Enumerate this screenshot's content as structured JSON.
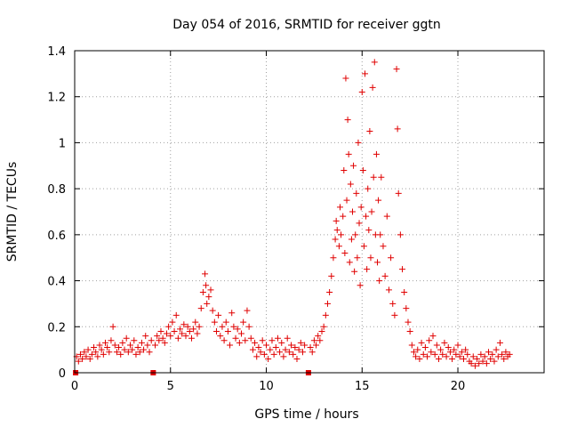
{
  "chart_data": {
    "type": "scatter",
    "title": "Day 054 of 2016, SRMTID for receiver ggtn",
    "xlabel": "GPS time / hours",
    "ylabel": "SRMTID / TECUs",
    "xlim": [
      0,
      24.5
    ],
    "ylim": [
      0,
      1.4
    ],
    "xticks": [
      0,
      5,
      10,
      15,
      20
    ],
    "xtick_labels": [
      "0",
      "5",
      "10",
      "15",
      "20"
    ],
    "yticks": [
      0,
      0.2,
      0.4,
      0.6,
      0.8,
      1.0,
      1.2,
      1.4
    ],
    "ytick_labels": [
      "0",
      "0.2",
      "0.4",
      "0.6",
      "0.8",
      "1",
      "1.2",
      "1.4"
    ],
    "grid": true,
    "marker": "+",
    "color": "#e00000",
    "gap_markers_x": [
      0.05,
      4.1,
      12.2
    ],
    "series": [
      {
        "name": "SRMTID",
        "points": [
          [
            0.1,
            0.07
          ],
          [
            0.2,
            0.05
          ],
          [
            0.3,
            0.08
          ],
          [
            0.4,
            0.06
          ],
          [
            0.5,
            0.09
          ],
          [
            0.6,
            0.07
          ],
          [
            0.7,
            0.1
          ],
          [
            0.8,
            0.06
          ],
          [
            0.9,
            0.08
          ],
          [
            1.0,
            0.11
          ],
          [
            1.1,
            0.09
          ],
          [
            1.2,
            0.07
          ],
          [
            1.3,
            0.12
          ],
          [
            1.4,
            0.1
          ],
          [
            1.5,
            0.08
          ],
          [
            1.6,
            0.13
          ],
          [
            1.7,
            0.11
          ],
          [
            1.8,
            0.09
          ],
          [
            1.9,
            0.14
          ],
          [
            2.0,
            0.2
          ],
          [
            2.1,
            0.12
          ],
          [
            2.2,
            0.09
          ],
          [
            2.3,
            0.11
          ],
          [
            2.4,
            0.08
          ],
          [
            2.5,
            0.13
          ],
          [
            2.6,
            0.1
          ],
          [
            2.7,
            0.15
          ],
          [
            2.8,
            0.09
          ],
          [
            2.9,
            0.12
          ],
          [
            3.0,
            0.1
          ],
          [
            3.1,
            0.14
          ],
          [
            3.2,
            0.08
          ],
          [
            3.3,
            0.11
          ],
          [
            3.4,
            0.09
          ],
          [
            3.5,
            0.13
          ],
          [
            3.6,
            0.1
          ],
          [
            3.7,
            0.16
          ],
          [
            3.8,
            0.12
          ],
          [
            3.9,
            0.09
          ],
          [
            4.0,
            0.14
          ],
          [
            4.2,
            0.12
          ],
          [
            4.3,
            0.16
          ],
          [
            4.4,
            0.14
          ],
          [
            4.5,
            0.18
          ],
          [
            4.6,
            0.15
          ],
          [
            4.7,
            0.13
          ],
          [
            4.8,
            0.17
          ],
          [
            4.9,
            0.2
          ],
          [
            5.0,
            0.16
          ],
          [
            5.1,
            0.22
          ],
          [
            5.2,
            0.18
          ],
          [
            5.3,
            0.25
          ],
          [
            5.4,
            0.15
          ],
          [
            5.5,
            0.19
          ],
          [
            5.6,
            0.17
          ],
          [
            5.7,
            0.21
          ],
          [
            5.8,
            0.16
          ],
          [
            5.9,
            0.2
          ],
          [
            6.0,
            0.18
          ],
          [
            6.1,
            0.15
          ],
          [
            6.2,
            0.19
          ],
          [
            6.3,
            0.22
          ],
          [
            6.4,
            0.17
          ],
          [
            6.5,
            0.2
          ],
          [
            6.6,
            0.28
          ],
          [
            6.7,
            0.35
          ],
          [
            6.8,
            0.43
          ],
          [
            6.85,
            0.38
          ],
          [
            6.9,
            0.3
          ],
          [
            7.0,
            0.33
          ],
          [
            7.1,
            0.36
          ],
          [
            7.2,
            0.27
          ],
          [
            7.3,
            0.22
          ],
          [
            7.4,
            0.18
          ],
          [
            7.5,
            0.25
          ],
          [
            7.6,
            0.16
          ],
          [
            7.7,
            0.2
          ],
          [
            7.8,
            0.14
          ],
          [
            7.9,
            0.22
          ],
          [
            8.0,
            0.18
          ],
          [
            8.1,
            0.12
          ],
          [
            8.2,
            0.26
          ],
          [
            8.3,
            0.2
          ],
          [
            8.4,
            0.15
          ],
          [
            8.5,
            0.19
          ],
          [
            8.6,
            0.13
          ],
          [
            8.7,
            0.17
          ],
          [
            8.8,
            0.22
          ],
          [
            8.9,
            0.14
          ],
          [
            9.0,
            0.27
          ],
          [
            9.1,
            0.2
          ],
          [
            9.2,
            0.15
          ],
          [
            9.3,
            0.1
          ],
          [
            9.4,
            0.13
          ],
          [
            9.5,
            0.07
          ],
          [
            9.6,
            0.11
          ],
          [
            9.7,
            0.09
          ],
          [
            9.8,
            0.14
          ],
          [
            9.9,
            0.08
          ],
          [
            10.0,
            0.12
          ],
          [
            10.1,
            0.06
          ],
          [
            10.2,
            0.1
          ],
          [
            10.3,
            0.14
          ],
          [
            10.4,
            0.08
          ],
          [
            10.5,
            0.11
          ],
          [
            10.6,
            0.15
          ],
          [
            10.7,
            0.09
          ],
          [
            10.8,
            0.13
          ],
          [
            10.9,
            0.07
          ],
          [
            11.0,
            0.1
          ],
          [
            11.1,
            0.15
          ],
          [
            11.2,
            0.09
          ],
          [
            11.3,
            0.12
          ],
          [
            11.4,
            0.08
          ],
          [
            11.5,
            0.11
          ],
          [
            11.6,
            0.06
          ],
          [
            11.7,
            0.1
          ],
          [
            11.8,
            0.13
          ],
          [
            11.9,
            0.09
          ],
          [
            12.0,
            0.12
          ],
          [
            12.3,
            0.11
          ],
          [
            12.4,
            0.09
          ],
          [
            12.5,
            0.14
          ],
          [
            12.6,
            0.12
          ],
          [
            12.7,
            0.16
          ],
          [
            12.8,
            0.14
          ],
          [
            12.9,
            0.18
          ],
          [
            13.0,
            0.2
          ],
          [
            13.1,
            0.25
          ],
          [
            13.2,
            0.3
          ],
          [
            13.3,
            0.35
          ],
          [
            13.4,
            0.42
          ],
          [
            13.5,
            0.5
          ],
          [
            13.6,
            0.58
          ],
          [
            13.65,
            0.66
          ],
          [
            13.7,
            0.62
          ],
          [
            13.8,
            0.55
          ],
          [
            13.85,
            0.72
          ],
          [
            13.9,
            0.6
          ],
          [
            14.0,
            0.68
          ],
          [
            14.05,
            0.88
          ],
          [
            14.1,
            0.52
          ],
          [
            14.15,
            1.28
          ],
          [
            14.2,
            0.75
          ],
          [
            14.25,
            1.1
          ],
          [
            14.3,
            0.95
          ],
          [
            14.35,
            0.48
          ],
          [
            14.4,
            0.82
          ],
          [
            14.45,
            0.58
          ],
          [
            14.5,
            0.7
          ],
          [
            14.55,
            0.9
          ],
          [
            14.6,
            0.44
          ],
          [
            14.65,
            0.6
          ],
          [
            14.7,
            0.78
          ],
          [
            14.75,
            0.5
          ],
          [
            14.8,
            1.0
          ],
          [
            14.85,
            0.65
          ],
          [
            14.9,
            0.38
          ],
          [
            14.95,
            0.72
          ],
          [
            15.0,
            1.22
          ],
          [
            15.05,
            0.88
          ],
          [
            15.1,
            0.55
          ],
          [
            15.15,
            1.3
          ],
          [
            15.2,
            0.68
          ],
          [
            15.25,
            0.45
          ],
          [
            15.3,
            0.8
          ],
          [
            15.35,
            0.62
          ],
          [
            15.4,
            1.05
          ],
          [
            15.45,
            0.5
          ],
          [
            15.5,
            0.7
          ],
          [
            15.55,
            1.24
          ],
          [
            15.6,
            0.85
          ],
          [
            15.65,
            1.35
          ],
          [
            15.7,
            0.6
          ],
          [
            15.75,
            0.95
          ],
          [
            15.8,
            0.48
          ],
          [
            15.85,
            0.75
          ],
          [
            15.9,
            0.4
          ],
          [
            15.95,
            0.6
          ],
          [
            16.0,
            0.85
          ],
          [
            16.1,
            0.55
          ],
          [
            16.2,
            0.42
          ],
          [
            16.3,
            0.68
          ],
          [
            16.4,
            0.36
          ],
          [
            16.5,
            0.5
          ],
          [
            16.6,
            0.3
          ],
          [
            16.7,
            0.25
          ],
          [
            16.8,
            1.32
          ],
          [
            16.85,
            1.06
          ],
          [
            16.9,
            0.78
          ],
          [
            17.0,
            0.6
          ],
          [
            17.1,
            0.45
          ],
          [
            17.2,
            0.35
          ],
          [
            17.3,
            0.28
          ],
          [
            17.4,
            0.22
          ],
          [
            17.5,
            0.18
          ],
          [
            17.6,
            0.12
          ],
          [
            17.7,
            0.09
          ],
          [
            17.8,
            0.07
          ],
          [
            17.9,
            0.1
          ],
          [
            18.0,
            0.06
          ],
          [
            18.1,
            0.13
          ],
          [
            18.2,
            0.08
          ],
          [
            18.3,
            0.11
          ],
          [
            18.4,
            0.07
          ],
          [
            18.5,
            0.14
          ],
          [
            18.6,
            0.09
          ],
          [
            18.7,
            0.16
          ],
          [
            18.8,
            0.08
          ],
          [
            18.9,
            0.12
          ],
          [
            19.0,
            0.06
          ],
          [
            19.1,
            0.1
          ],
          [
            19.2,
            0.08
          ],
          [
            19.3,
            0.13
          ],
          [
            19.4,
            0.07
          ],
          [
            19.5,
            0.11
          ],
          [
            19.6,
            0.09
          ],
          [
            19.7,
            0.06
          ],
          [
            19.8,
            0.1
          ],
          [
            19.9,
            0.08
          ],
          [
            20.0,
            0.12
          ],
          [
            20.1,
            0.07
          ],
          [
            20.2,
            0.09
          ],
          [
            20.3,
            0.06
          ],
          [
            20.4,
            0.1
          ],
          [
            20.5,
            0.08
          ],
          [
            20.6,
            0.05
          ],
          [
            20.7,
            0.04
          ],
          [
            20.8,
            0.07
          ],
          [
            20.9,
            0.03
          ],
          [
            21.0,
            0.06
          ],
          [
            21.1,
            0.04
          ],
          [
            21.2,
            0.08
          ],
          [
            21.3,
            0.05
          ],
          [
            21.4,
            0.07
          ],
          [
            21.5,
            0.04
          ],
          [
            21.6,
            0.09
          ],
          [
            21.7,
            0.06
          ],
          [
            21.8,
            0.08
          ],
          [
            21.9,
            0.05
          ],
          [
            22.0,
            0.1
          ],
          [
            22.1,
            0.07
          ],
          [
            22.2,
            0.13
          ],
          [
            22.3,
            0.08
          ],
          [
            22.4,
            0.06
          ],
          [
            22.5,
            0.09
          ],
          [
            22.6,
            0.07
          ],
          [
            22.7,
            0.08
          ]
        ]
      }
    ]
  }
}
